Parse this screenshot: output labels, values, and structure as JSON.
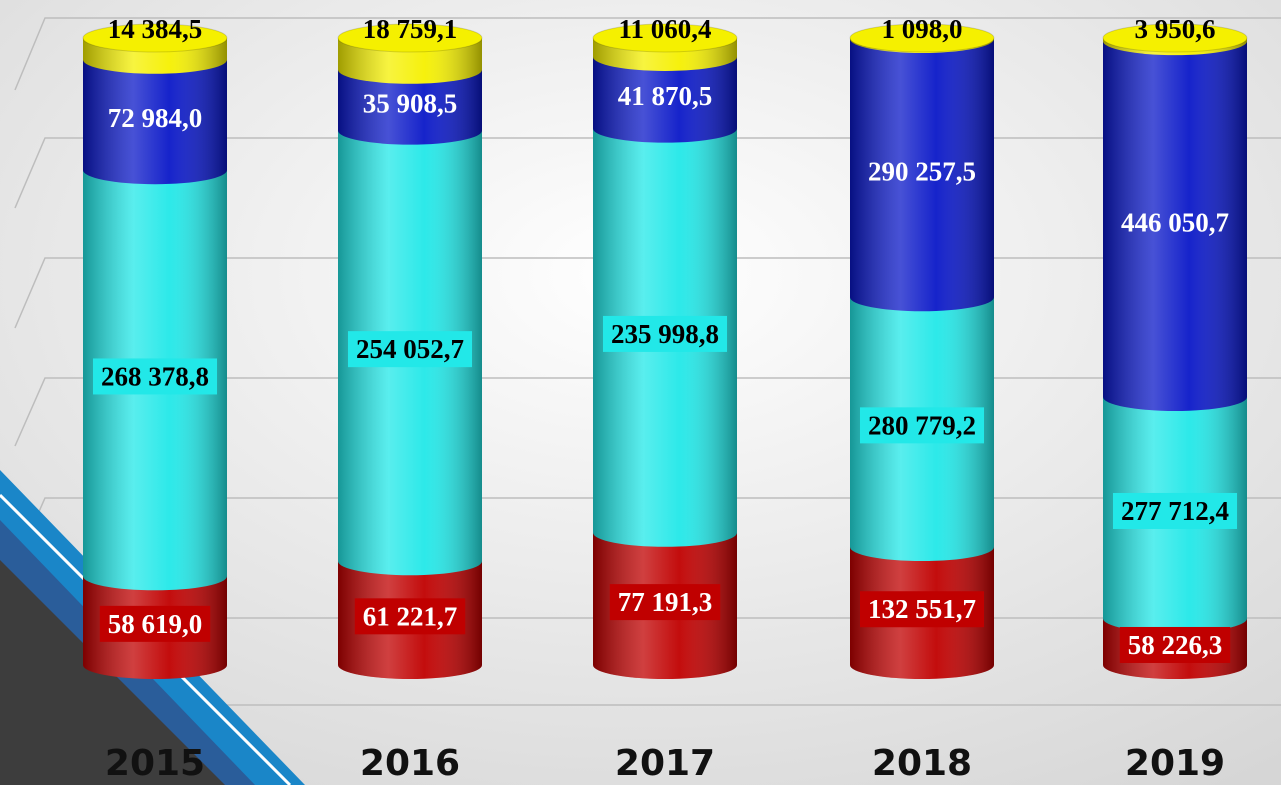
{
  "chart_data": {
    "type": "bar",
    "stack": "percent",
    "categories": [
      "2015",
      "2016",
      "2017",
      "2018",
      "2019"
    ],
    "series": [
      {
        "color": "#c00000",
        "values": [
          58619.0,
          61221.7,
          77191.3,
          132551.7,
          58226.3
        ],
        "value_labels": [
          "58 619,0",
          "61 221,7",
          "77 191,3",
          "132 551,7",
          "58 226,3"
        ]
      },
      {
        "color": "#22e8e8",
        "values": [
          268378.8,
          254052.7,
          235998.8,
          280779.2,
          277712.4
        ],
        "value_labels": [
          "268 378,8",
          "254 052,7",
          "235 998,8",
          "280 779,2",
          "277 712,4"
        ]
      },
      {
        "color": "#0a18c8",
        "values": [
          72984.0,
          35908.5,
          41870.5,
          290257.5,
          446050.7
        ],
        "value_labels": [
          "72 984,0",
          "35 908,5",
          "41 870,5",
          "290 257,5",
          "446 050,7"
        ]
      },
      {
        "color": "#f5f000",
        "values": [
          14384.5,
          18759.1,
          11060.4,
          1098.0,
          3950.6
        ],
        "value_labels": [
          "14 384,5",
          "18 759,1",
          "11 060,4",
          "1 098,0",
          "3 950,6"
        ]
      }
    ]
  }
}
